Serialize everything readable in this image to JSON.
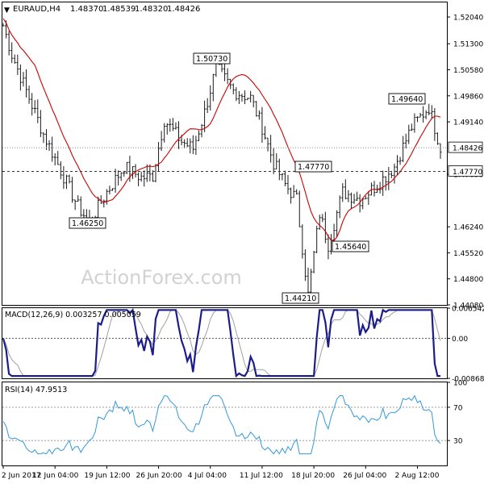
{
  "chart_data": {
    "type": "line",
    "header": {
      "symbol": "EURAUD,H4",
      "open": "1.48370",
      "high": "1.48539",
      "low": "1.48320",
      "close": "1.48426"
    },
    "watermark": "ActionForex.com",
    "x_ticks": [
      "2 Jun 2017",
      "12 Jun 04:00",
      "19 Jun 12:00",
      "26 Jun 20:00",
      "4 Jul 04:00",
      "11 Jul 12:00",
      "18 Jul 20:00",
      "26 Jul 04:00",
      "2 Aug 12:00"
    ],
    "x_tick_index": [
      0,
      18,
      36,
      54,
      72,
      90,
      108,
      126,
      144
    ],
    "price_panel": {
      "ylim": [
        1.4408,
        1.5242
      ],
      "y_ticks": [
        {
          "label": "1.52040",
          "value": 1.5204
        },
        {
          "label": "1.51300",
          "value": 1.513
        },
        {
          "label": "1.50580",
          "value": 1.5058
        },
        {
          "label": "1.49860",
          "value": 1.4986
        },
        {
          "label": "1.49140",
          "value": 1.4914
        },
        {
          "label": "1.47690",
          "value": 1.4769
        },
        {
          "label": "1.46240",
          "value": 1.4624
        },
        {
          "label": "1.45520",
          "value": 1.4552
        },
        {
          "label": "1.44800",
          "value": 1.448
        },
        {
          "label": "1.44080",
          "value": 1.4408
        }
      ],
      "current_price": {
        "label": "1.48426",
        "value": 1.48426
      },
      "support_level": {
        "label": "1.47770",
        "value": 1.4777
      },
      "annotations": [
        {
          "label": "1.50730",
          "value": 1.5073,
          "bar": 74
        },
        {
          "label": "1.46250",
          "value": 1.4625,
          "bar": 30
        },
        {
          "label": "1.47770",
          "value": 1.4777,
          "bar": 98
        },
        {
          "label": "1.49640",
          "value": 1.4964,
          "bar": 148
        },
        {
          "label": "1.45640",
          "value": 1.4564,
          "bar": 113
        },
        {
          "label": "1.44210",
          "value": 1.4421,
          "bar": 106
        }
      ],
      "series": [
        {
          "role": "price",
          "color": "#1a1a1a"
        },
        {
          "role": "moving-average",
          "color": "#cc0000"
        }
      ]
    },
    "macd_panel": {
      "title": "MACD(12,26,9) 0.003257 0.005059",
      "ylim": [
        -0.00868,
        0.00654
      ],
      "y_ticks": [
        {
          "label": "0.006542",
          "value": 0.006542
        },
        {
          "label": "0.00",
          "value": 0
        },
        {
          "label": "-0.008684",
          "value": -0.008684
        }
      ],
      "series": [
        {
          "role": "macd",
          "color": "#1c1c8c"
        },
        {
          "role": "signal",
          "color": "#a0a0a0"
        }
      ]
    },
    "rsi_panel": {
      "title": "RSI(14) 47.9513",
      "ylim": [
        0,
        100
      ],
      "y_ticks": [
        {
          "label": "100",
          "value": 100
        },
        {
          "label": "70",
          "value": 70
        },
        {
          "label": "30",
          "value": 30
        },
        {
          "label": "0",
          "value": 0
        }
      ],
      "levels": [
        70,
        30
      ],
      "series": [
        {
          "role": "rsi",
          "color": "#3399dd"
        }
      ]
    }
  }
}
